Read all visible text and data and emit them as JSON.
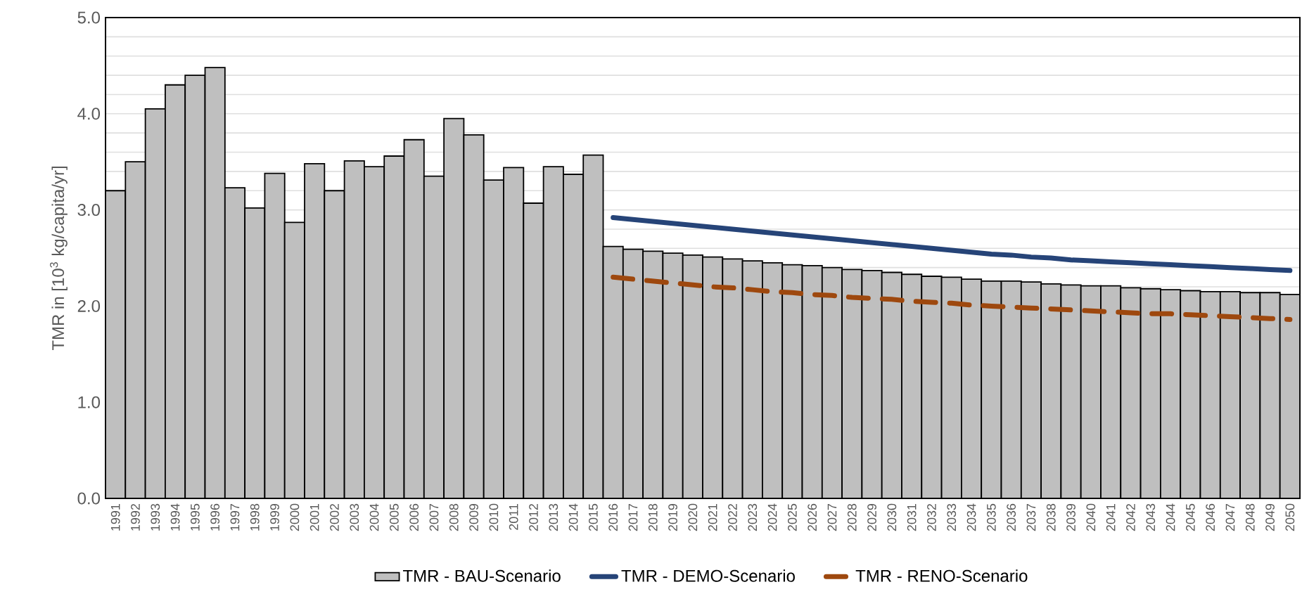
{
  "chart_data": {
    "type": "bar",
    "ylabel": "TMR in [10$^{3}$ kg/capita/yr]",
    "categories": [
      "1991",
      "1992",
      "1993",
      "1994",
      "1995",
      "1996",
      "1997",
      "1998",
      "1999",
      "2000",
      "2001",
      "2002",
      "2003",
      "2004",
      "2005",
      "2006",
      "2007",
      "2008",
      "2009",
      "2010",
      "2011",
      "2012",
      "2013",
      "2014",
      "2015",
      "2016",
      "2017",
      "2018",
      "2019",
      "2020",
      "2021",
      "2022",
      "2023",
      "2024",
      "2025",
      "2026",
      "2027",
      "2028",
      "2029",
      "2030",
      "2031",
      "2032",
      "2033",
      "2034",
      "2035",
      "2036",
      "2037",
      "2038",
      "2039",
      "2040",
      "2041",
      "2042",
      "2043",
      "2044",
      "2045",
      "2046",
      "2047",
      "2048",
      "2049",
      "2050"
    ],
    "series": [
      {
        "name": "TMR - BAU-Scenario",
        "color": "#bfbfbf",
        "values": [
          3.2,
          3.5,
          4.05,
          4.3,
          4.4,
          4.48,
          3.23,
          3.02,
          3.38,
          2.87,
          3.48,
          3.2,
          3.51,
          3.45,
          3.56,
          3.73,
          3.35,
          3.95,
          3.78,
          3.31,
          3.44,
          3.07,
          3.45,
          3.37,
          3.57,
          2.62,
          2.59,
          2.57,
          2.55,
          2.53,
          2.51,
          2.49,
          2.47,
          2.45,
          2.43,
          2.42,
          2.4,
          2.38,
          2.37,
          2.35,
          2.33,
          2.31,
          2.3,
          2.28,
          2.26,
          2.26,
          2.25,
          2.23,
          2.22,
          2.21,
          2.21,
          2.19,
          2.18,
          2.17,
          2.16,
          2.15,
          2.15,
          2.14,
          2.14,
          2.12
        ]
      },
      {
        "name": "TMR  - DEMO-Scenario",
        "type": "line",
        "color": "#264478",
        "line_style": "solid",
        "values": [
          null,
          null,
          null,
          null,
          null,
          null,
          null,
          null,
          null,
          null,
          null,
          null,
          null,
          null,
          null,
          null,
          null,
          null,
          null,
          null,
          null,
          null,
          null,
          null,
          null,
          2.92,
          2.9,
          2.88,
          2.86,
          2.84,
          2.82,
          2.8,
          2.78,
          2.76,
          2.74,
          2.72,
          2.7,
          2.68,
          2.66,
          2.64,
          2.62,
          2.6,
          2.58,
          2.56,
          2.54,
          2.53,
          2.51,
          2.5,
          2.48,
          2.47,
          2.46,
          2.45,
          2.44,
          2.43,
          2.42,
          2.41,
          2.4,
          2.39,
          2.38,
          2.37
        ]
      },
      {
        "name": "TMR  - RENO-Scenario",
        "type": "line",
        "color": "#9e480e",
        "line_style": "dashed",
        "values": [
          null,
          null,
          null,
          null,
          null,
          null,
          null,
          null,
          null,
          null,
          null,
          null,
          null,
          null,
          null,
          null,
          null,
          null,
          null,
          null,
          null,
          null,
          null,
          null,
          null,
          2.3,
          2.28,
          2.26,
          2.24,
          2.22,
          2.2,
          2.19,
          2.17,
          2.15,
          2.14,
          2.12,
          2.11,
          2.09,
          2.08,
          2.07,
          2.05,
          2.04,
          2.03,
          2.01,
          2.0,
          1.99,
          1.98,
          1.97,
          1.96,
          1.95,
          1.94,
          1.93,
          1.92,
          1.92,
          1.91,
          1.9,
          1.89,
          1.88,
          1.87,
          1.86
        ]
      }
    ],
    "ylim": [
      0,
      5
    ],
    "yticks": [
      {
        "value": 0,
        "label": "0.0"
      },
      {
        "value": 0.2,
        "label": null
      },
      {
        "value": 0.4,
        "label": null
      },
      {
        "value": 0.6,
        "label": null
      },
      {
        "value": 0.8,
        "label": null
      },
      {
        "value": 1,
        "label": "1.0"
      },
      {
        "value": 1.2,
        "label": null
      },
      {
        "value": 1.4,
        "label": null
      },
      {
        "value": 1.6,
        "label": null
      },
      {
        "value": 1.8,
        "label": null
      },
      {
        "value": 2,
        "label": "2.0"
      },
      {
        "value": 2.2,
        "label": null
      },
      {
        "value": 2.4,
        "label": null
      },
      {
        "value": 2.6,
        "label": null
      },
      {
        "value": 2.8,
        "label": null
      },
      {
        "value": 3,
        "label": "3.0"
      },
      {
        "value": 3.2,
        "label": null
      },
      {
        "value": 3.4,
        "label": null
      },
      {
        "value": 3.6,
        "label": null
      },
      {
        "value": 3.8,
        "label": null
      },
      {
        "value": 4,
        "label": "4.0"
      },
      {
        "value": 4.2,
        "label": null
      },
      {
        "value": 4.4,
        "label": null
      },
      {
        "value": 4.6,
        "label": null
      },
      {
        "value": 4.8,
        "label": null
      },
      {
        "value": 5,
        "label": "5.0"
      }
    ],
    "grid": "y",
    "legend": "bottom"
  }
}
